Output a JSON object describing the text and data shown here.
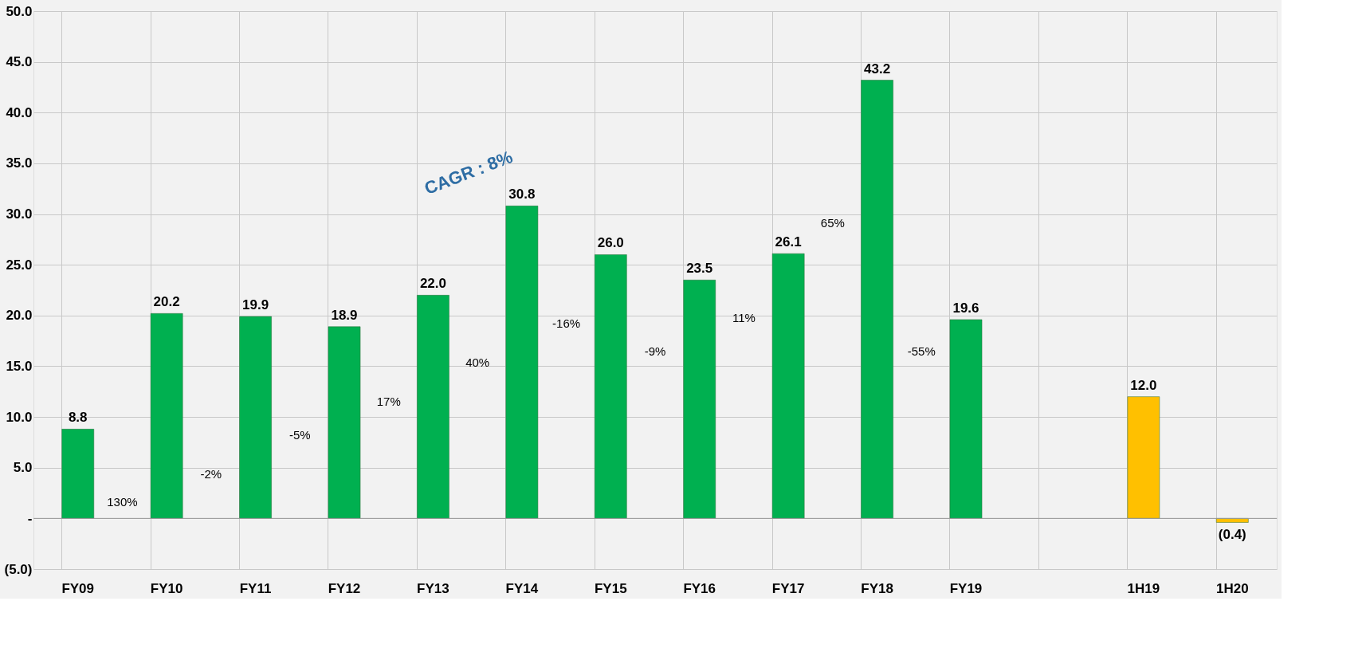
{
  "chart_data": {
    "type": "bar",
    "categories": [
      "FY09",
      "FY10",
      "FY11",
      "FY12",
      "FY13",
      "FY14",
      "FY15",
      "FY16",
      "FY17",
      "FY18",
      "FY19",
      null,
      "1H19",
      "1H20"
    ],
    "values": [
      8.8,
      20.2,
      19.9,
      18.9,
      22.0,
      30.8,
      26.0,
      23.5,
      26.1,
      43.2,
      19.6,
      null,
      12.0,
      -0.4
    ],
    "colors": [
      "#00b050",
      "#00b050",
      "#00b050",
      "#00b050",
      "#00b050",
      "#00b050",
      "#00b050",
      "#00b050",
      "#00b050",
      "#00b050",
      "#00b050",
      "#00b050",
      "#ffc000",
      "#ffc000"
    ],
    "value_labels": [
      "8.8",
      "20.2",
      "19.9",
      "18.9",
      "22.0",
      "30.8",
      "26.0",
      "23.5",
      "26.1",
      "43.2",
      "19.6",
      null,
      "12.0",
      "(0.4)"
    ],
    "ylim": [
      -5,
      50
    ],
    "yticks": [
      {
        "value": -5,
        "label": "(5.0)"
      },
      {
        "value": 0,
        "label": "-"
      },
      {
        "value": 5,
        "label": "5.0"
      },
      {
        "value": 10,
        "label": "10.0"
      },
      {
        "value": 15,
        "label": "15.0"
      },
      {
        "value": 20,
        "label": "20.0"
      },
      {
        "value": 25,
        "label": "25.0"
      },
      {
        "value": 30,
        "label": "30.0"
      },
      {
        "value": 35,
        "label": "35.0"
      },
      {
        "value": 40,
        "label": "40.0"
      },
      {
        "value": 45,
        "label": "45.0"
      },
      {
        "value": 50,
        "label": "50.0"
      }
    ],
    "grid": true,
    "annotations": [
      "CAGR : 8%",
      "130%",
      "-2%",
      "-5%",
      "17%",
      "40%",
      "-16%",
      "-9%",
      "11%",
      "65%",
      "-55%"
    ]
  }
}
